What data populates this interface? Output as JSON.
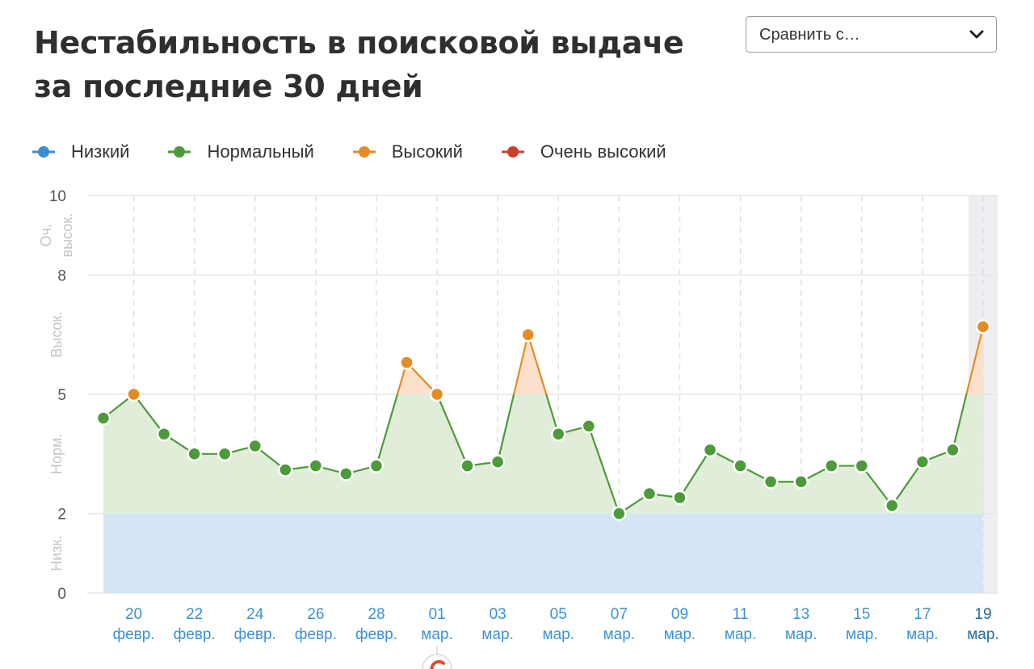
{
  "header": {
    "title_line1": "Нестабильность в поисковой выдаче",
    "title_line2": "за последние 30 дней"
  },
  "compare": {
    "label": "Сравнить с…"
  },
  "legend": [
    {
      "label": "Низкий",
      "color": "#3b8fd1"
    },
    {
      "label": "Нормальный",
      "color": "#4c9a3a"
    },
    {
      "label": "Высокий",
      "color": "#e38c22"
    },
    {
      "label": "Очень высокий",
      "color": "#c9412c"
    }
  ],
  "chart_data": {
    "type": "area",
    "ylim": [
      0,
      10
    ],
    "yticks": [
      0,
      2,
      5,
      8,
      10
    ],
    "bands": [
      {
        "label": "Низк.",
        "from": 0,
        "to": 2,
        "fill": "#d5e5f5"
      },
      {
        "label": "Норм.",
        "from": 2,
        "to": 5,
        "fill": "#e0edd8"
      },
      {
        "label": "Высок.",
        "from": 5,
        "to": 8,
        "fill": "#fbe1cc"
      },
      {
        "label": "Оч. высок.",
        "from": 8,
        "to": 10,
        "fill": "#f6d7d3"
      }
    ],
    "x_ticks": [
      {
        "day": "20",
        "month": "февр."
      },
      {
        "day": "22",
        "month": "февр."
      },
      {
        "day": "24",
        "month": "февр."
      },
      {
        "day": "26",
        "month": "февр."
      },
      {
        "day": "28",
        "month": "февр."
      },
      {
        "day": "01",
        "month": "мар."
      },
      {
        "day": "03",
        "month": "мар."
      },
      {
        "day": "05",
        "month": "мар."
      },
      {
        "day": "07",
        "month": "мар."
      },
      {
        "day": "09",
        "month": "мар."
      },
      {
        "day": "11",
        "month": "мар."
      },
      {
        "day": "13",
        "month": "мар."
      },
      {
        "day": "15",
        "month": "мар."
      },
      {
        "day": "17",
        "month": "мар."
      },
      {
        "day": "19",
        "month": "мар."
      }
    ],
    "highlight_last": true,
    "series": [
      {
        "x": [
          "19 февр.",
          "20 февр.",
          "21 февр.",
          "22 февр.",
          "23 февр.",
          "24 февр.",
          "25 февр.",
          "26 февр.",
          "27 февр.",
          "28 февр.",
          "29 февр.",
          "01 мар.",
          "02 мар.",
          "03 мар.",
          "04 мар.",
          "05 мар.",
          "06 мар.",
          "07 мар.",
          "08 мар.",
          "09 мар.",
          "10 мар.",
          "11 мар.",
          "12 мар.",
          "13 мар.",
          "14 мар.",
          "15 мар.",
          "16 мар.",
          "17 мар.",
          "18 мар.",
          "19 мар."
        ],
        "values": [
          4.4,
          5.0,
          4.0,
          3.5,
          3.5,
          3.7,
          3.1,
          3.2,
          3.0,
          3.2,
          5.8,
          5.0,
          3.2,
          3.3,
          6.5,
          4.0,
          4.2,
          2.0,
          2.5,
          2.4,
          3.6,
          3.2,
          2.8,
          2.8,
          3.2,
          3.2,
          2.2,
          3.3,
          3.6,
          6.7
        ]
      }
    ]
  }
}
